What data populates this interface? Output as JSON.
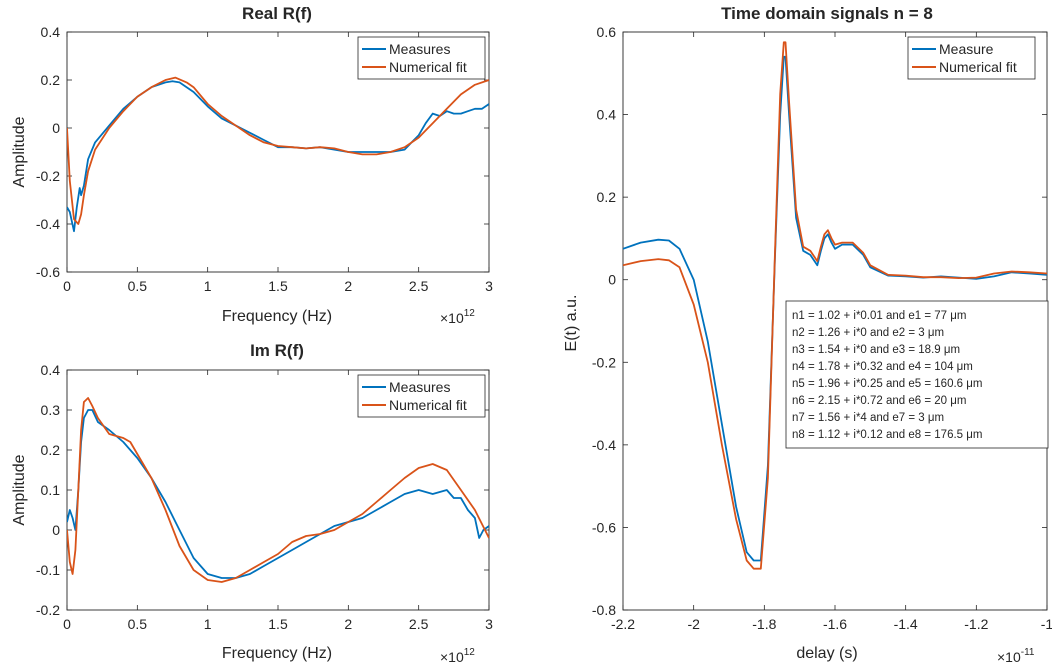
{
  "colors": {
    "measure": "#0072BD",
    "fit": "#D95319",
    "axis": "#262626",
    "background": "#ffffff"
  },
  "chart_data": [
    {
      "id": "real",
      "type": "line",
      "title": "Real R(f)",
      "xlabel": "Frequency (Hz)",
      "ylabel": "Amplitude",
      "xlim": [
        0,
        3
      ],
      "ylim": [
        -0.6,
        0.4
      ],
      "xticks": [
        "0",
        "0.5",
        "1",
        "1.5",
        "2",
        "2.5",
        "3"
      ],
      "yticks": [
        "-0.6",
        "-0.4",
        "-0.2",
        "0",
        "0.2",
        "0.4"
      ],
      "x_exponent": {
        "base": "×10",
        "power": "12"
      },
      "legend_position": "top-right",
      "grid": false,
      "series": [
        {
          "name": "Measures",
          "x": [
            0,
            0.02,
            0.05,
            0.07,
            0.09,
            0.1,
            0.12,
            0.15,
            0.2,
            0.3,
            0.4,
            0.5,
            0.6,
            0.7,
            0.75,
            0.8,
            0.9,
            1.0,
            1.1,
            1.2,
            1.3,
            1.4,
            1.5,
            1.6,
            1.7,
            1.8,
            1.9,
            2.0,
            2.1,
            2.2,
            2.3,
            2.4,
            2.45,
            2.5,
            2.55,
            2.6,
            2.65,
            2.7,
            2.75,
            2.8,
            2.85,
            2.9,
            2.95,
            3.0
          ],
          "y": [
            -0.33,
            -0.35,
            -0.43,
            -0.33,
            -0.25,
            -0.28,
            -0.24,
            -0.13,
            -0.06,
            0.01,
            0.08,
            0.13,
            0.17,
            0.19,
            0.195,
            0.19,
            0.15,
            0.09,
            0.04,
            0.01,
            -0.02,
            -0.05,
            -0.08,
            -0.08,
            -0.085,
            -0.08,
            -0.09,
            -0.1,
            -0.1,
            -0.1,
            -0.1,
            -0.09,
            -0.06,
            -0.03,
            0.02,
            0.06,
            0.05,
            0.07,
            0.06,
            0.06,
            0.07,
            0.08,
            0.08,
            0.1
          ]
        },
        {
          "name": "Numerical fit",
          "x": [
            0,
            0.02,
            0.05,
            0.08,
            0.1,
            0.12,
            0.15,
            0.2,
            0.3,
            0.4,
            0.5,
            0.6,
            0.7,
            0.77,
            0.85,
            0.9,
            1.0,
            1.1,
            1.2,
            1.3,
            1.4,
            1.5,
            1.6,
            1.7,
            1.8,
            1.9,
            2.0,
            2.1,
            2.2,
            2.3,
            2.4,
            2.5,
            2.6,
            2.7,
            2.8,
            2.9,
            3.0
          ],
          "y": [
            0,
            -0.22,
            -0.38,
            -0.4,
            -0.36,
            -0.28,
            -0.18,
            -0.09,
            0.0,
            0.07,
            0.13,
            0.17,
            0.2,
            0.21,
            0.19,
            0.17,
            0.1,
            0.05,
            0.01,
            -0.03,
            -0.06,
            -0.075,
            -0.08,
            -0.085,
            -0.08,
            -0.085,
            -0.1,
            -0.11,
            -0.11,
            -0.1,
            -0.08,
            -0.04,
            0.02,
            0.08,
            0.14,
            0.18,
            0.2
          ]
        }
      ]
    },
    {
      "id": "imag",
      "type": "line",
      "title": "Im R(f)",
      "xlabel": "Frequency (Hz)",
      "ylabel": "Amplitude",
      "xlim": [
        0,
        3
      ],
      "ylim": [
        -0.2,
        0.4
      ],
      "xticks": [
        "0",
        "0.5",
        "1",
        "1.5",
        "2",
        "2.5",
        "3"
      ],
      "yticks": [
        "-0.2",
        "-0.1",
        "0",
        "0.1",
        "0.2",
        "0.3",
        "0.4"
      ],
      "x_exponent": {
        "base": "×10",
        "power": "12"
      },
      "legend_position": "top-right",
      "grid": false,
      "series": [
        {
          "name": "Measures",
          "x": [
            0,
            0.02,
            0.04,
            0.06,
            0.08,
            0.1,
            0.12,
            0.15,
            0.18,
            0.22,
            0.3,
            0.4,
            0.5,
            0.6,
            0.7,
            0.8,
            0.9,
            1.0,
            1.1,
            1.2,
            1.3,
            1.4,
            1.5,
            1.6,
            1.7,
            1.8,
            1.9,
            2.0,
            2.1,
            2.2,
            2.3,
            2.4,
            2.5,
            2.6,
            2.7,
            2.75,
            2.8,
            2.85,
            2.9,
            2.93,
            2.96,
            3.0
          ],
          "y": [
            0.02,
            0.05,
            0.03,
            0.0,
            0.1,
            0.22,
            0.28,
            0.3,
            0.3,
            0.27,
            0.25,
            0.22,
            0.18,
            0.13,
            0.07,
            0.0,
            -0.07,
            -0.11,
            -0.12,
            -0.12,
            -0.11,
            -0.09,
            -0.07,
            -0.05,
            -0.03,
            -0.01,
            0.01,
            0.02,
            0.03,
            0.05,
            0.07,
            0.09,
            0.1,
            0.09,
            0.1,
            0.08,
            0.08,
            0.05,
            0.03,
            -0.02,
            0.0,
            0.01
          ]
        },
        {
          "name": "Numerical fit",
          "x": [
            0,
            0.02,
            0.04,
            0.06,
            0.08,
            0.1,
            0.12,
            0.15,
            0.18,
            0.22,
            0.3,
            0.4,
            0.45,
            0.5,
            0.6,
            0.7,
            0.8,
            0.9,
            1.0,
            1.1,
            1.2,
            1.3,
            1.4,
            1.5,
            1.6,
            1.7,
            1.8,
            1.9,
            2.0,
            2.1,
            2.2,
            2.3,
            2.4,
            2.5,
            2.6,
            2.7,
            2.8,
            2.9,
            3.0
          ],
          "y": [
            0.0,
            -0.08,
            -0.11,
            -0.05,
            0.1,
            0.25,
            0.32,
            0.33,
            0.31,
            0.28,
            0.24,
            0.23,
            0.22,
            0.19,
            0.13,
            0.05,
            -0.04,
            -0.1,
            -0.125,
            -0.13,
            -0.12,
            -0.1,
            -0.08,
            -0.06,
            -0.03,
            -0.015,
            -0.01,
            0.0,
            0.02,
            0.04,
            0.07,
            0.1,
            0.13,
            0.155,
            0.165,
            0.15,
            0.1,
            0.05,
            -0.02
          ]
        }
      ]
    },
    {
      "id": "time",
      "type": "line",
      "title": "Time domain signals n = 8",
      "xlabel": "delay (s)",
      "ylabel": "E(t) a.u.",
      "xlim": [
        -2.2,
        -1.0
      ],
      "ylim": [
        -0.8,
        0.6
      ],
      "xticks": [
        "-2.2",
        "-2",
        "-1.8",
        "-1.6",
        "-1.4",
        "-1.2",
        "-1"
      ],
      "yticks": [
        "-0.8",
        "-0.6",
        "-0.4",
        "-0.2",
        "0",
        "0.2",
        "0.4",
        "0.6"
      ],
      "x_exponent": {
        "base": "×10",
        "power": "-11"
      },
      "legend_position": "top-right",
      "grid": false,
      "series": [
        {
          "name": "Measure",
          "x": [
            -2.2,
            -2.15,
            -2.1,
            -2.07,
            -2.04,
            -2.0,
            -1.96,
            -1.92,
            -1.88,
            -1.85,
            -1.83,
            -1.81,
            -1.79,
            -1.77,
            -1.755,
            -1.745,
            -1.74,
            -1.73,
            -1.71,
            -1.69,
            -1.67,
            -1.65,
            -1.64,
            -1.63,
            -1.62,
            -1.61,
            -1.6,
            -1.58,
            -1.55,
            -1.52,
            -1.5,
            -1.45,
            -1.4,
            -1.35,
            -1.3,
            -1.25,
            -1.2,
            -1.15,
            -1.1,
            -1.05,
            -1.0
          ],
          "y": [
            0.075,
            0.09,
            0.097,
            0.095,
            0.075,
            0.0,
            -0.15,
            -0.35,
            -0.55,
            -0.66,
            -0.68,
            -0.68,
            -0.45,
            0.05,
            0.4,
            0.54,
            0.54,
            0.4,
            0.15,
            0.07,
            0.06,
            0.035,
            0.07,
            0.1,
            0.11,
            0.09,
            0.075,
            0.085,
            0.085,
            0.06,
            0.03,
            0.01,
            0.008,
            0.005,
            0.008,
            0.005,
            0.002,
            0.008,
            0.018,
            0.015,
            0.012
          ]
        },
        {
          "name": "Numerical fit",
          "x": [
            -2.2,
            -2.15,
            -2.1,
            -2.07,
            -2.04,
            -2.0,
            -1.96,
            -1.92,
            -1.88,
            -1.85,
            -1.83,
            -1.81,
            -1.79,
            -1.77,
            -1.755,
            -1.745,
            -1.74,
            -1.73,
            -1.71,
            -1.69,
            -1.67,
            -1.65,
            -1.64,
            -1.63,
            -1.62,
            -1.61,
            -1.6,
            -1.58,
            -1.55,
            -1.52,
            -1.5,
            -1.45,
            -1.4,
            -1.35,
            -1.3,
            -1.25,
            -1.2,
            -1.15,
            -1.1,
            -1.05,
            -1.0
          ],
          "y": [
            0.035,
            0.045,
            0.05,
            0.047,
            0.03,
            -0.06,
            -0.2,
            -0.4,
            -0.58,
            -0.68,
            -0.7,
            -0.7,
            -0.48,
            0.06,
            0.45,
            0.575,
            0.575,
            0.43,
            0.17,
            0.08,
            0.07,
            0.045,
            0.08,
            0.11,
            0.12,
            0.1,
            0.085,
            0.09,
            0.09,
            0.065,
            0.035,
            0.012,
            0.01,
            0.006,
            0.006,
            0.004,
            0.005,
            0.015,
            0.02,
            0.018,
            0.015
          ]
        }
      ]
    }
  ],
  "annotation": {
    "lines": [
      "n1 = 1.02 + i*0.01 and e1 = 77 μm",
      "n2 = 1.26 + i*0 and e2 = 3 μm",
      "n3 = 1.54 + i*0 and e3 = 18.9 μm",
      "n4 = 1.78 + i*0.32 and e4 = 104 μm",
      "n5 = 1.96 + i*0.25 and e5 = 160.6 μm",
      "n6 = 2.15 + i*0.72 and e6 = 20 μm",
      "n7 = 1.56 + i*4 and e7 = 3 μm",
      "n8 = 1.12 + i*0.12 and e8 = 176.5 μm"
    ]
  }
}
